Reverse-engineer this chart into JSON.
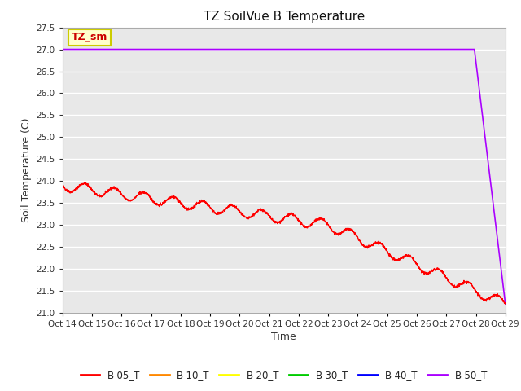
{
  "title": "TZ SoilVue B Temperature",
  "ylabel": "Soil Temperature (C)",
  "xlabel": "Time",
  "ylim": [
    21.0,
    27.5
  ],
  "yticks": [
    21.0,
    21.5,
    22.0,
    22.5,
    23.0,
    23.5,
    24.0,
    24.5,
    25.0,
    25.5,
    26.0,
    26.5,
    27.0,
    27.5
  ],
  "xtick_labels": [
    "Oct 14",
    "Oct 15",
    "Oct 16",
    "Oct 17",
    "Oct 18",
    "Oct 19",
    "Oct 20",
    "Oct 21",
    "Oct 22",
    "Oct 23",
    "Oct 24",
    "Oct 25",
    "Oct 26",
    "Oct 27",
    "Oct 28",
    "Oct 29"
  ],
  "legend_labels": [
    "B-05_T",
    "B-10_T",
    "B-20_T",
    "B-30_T",
    "B-40_T",
    "B-50_T"
  ],
  "legend_colors": [
    "#ff0000",
    "#ff8800",
    "#ffff00",
    "#00cc00",
    "#0000ff",
    "#aa00ff"
  ],
  "annotation_text": "TZ_sm",
  "annotation_color": "#cc0000",
  "annotation_bg": "#ffffcc",
  "annotation_border": "#cccc00",
  "bg_color": "#e8e8e8",
  "grid_color": "#ffffff"
}
